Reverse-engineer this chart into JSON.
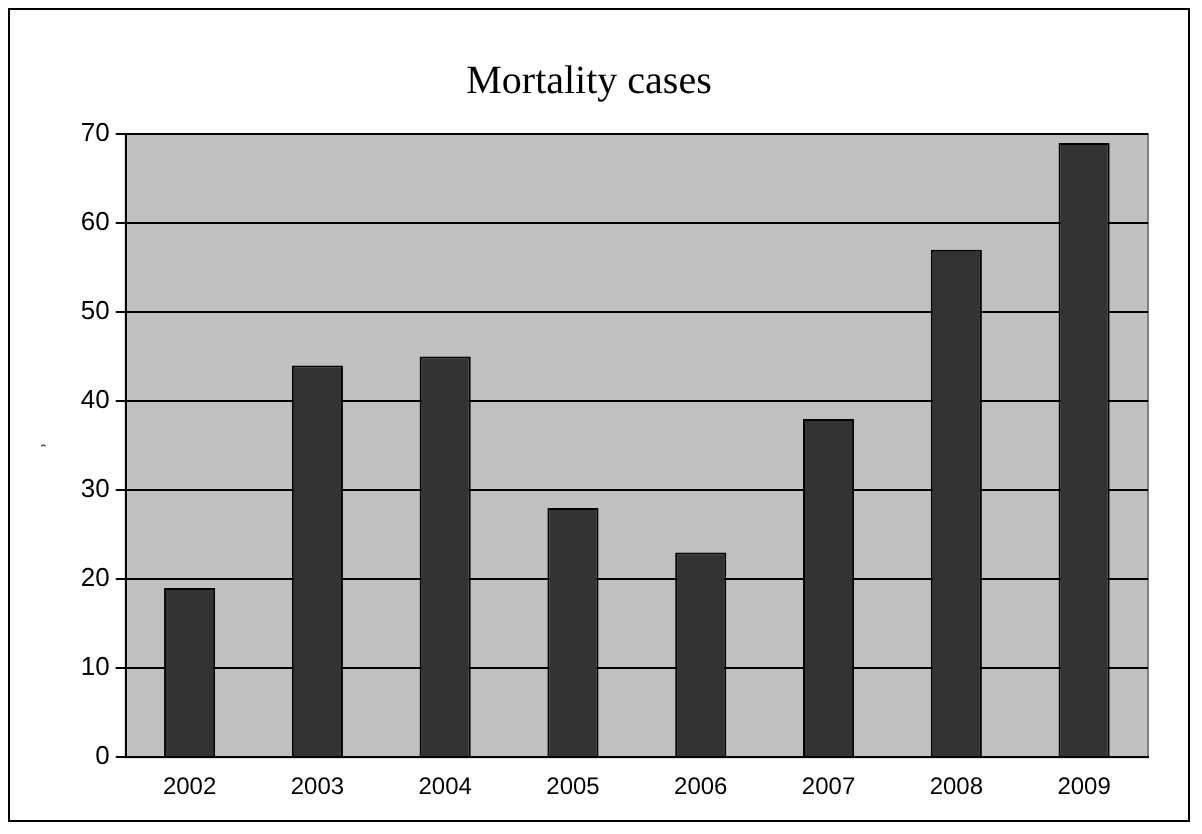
{
  "chart_data": {
    "type": "bar",
    "title": "Mortality cases",
    "ylabel": "ʾ",
    "categories": [
      "2002",
      "2003",
      "2004",
      "2005",
      "2006",
      "2007",
      "2008",
      "2009"
    ],
    "values": [
      19,
      44,
      45,
      28,
      23,
      38,
      57,
      69
    ],
    "color": "#333333",
    "ylim": [
      0,
      70
    ],
    "yticks": [
      0,
      10,
      20,
      30,
      40,
      50,
      60,
      70
    ],
    "grid": "y"
  }
}
